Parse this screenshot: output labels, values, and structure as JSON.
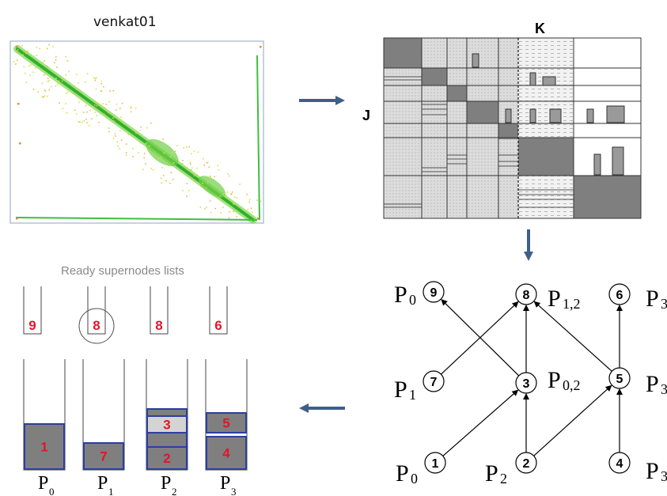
{
  "matrix_title": "venkat01",
  "block_matrix": {
    "col_label": "K",
    "row_label": "J"
  },
  "ready_lists": {
    "title": "Ready supernodes lists",
    "top": [
      "9",
      "8",
      "8",
      "6"
    ],
    "circled_index": 1
  },
  "queues": [
    {
      "processor": "P",
      "sub": "0",
      "items": [
        "1"
      ]
    },
    {
      "processor": "P",
      "sub": "1",
      "items": [
        "7"
      ]
    },
    {
      "processor": "P",
      "sub": "2",
      "items": [
        "3",
        "2"
      ]
    },
    {
      "processor": "P",
      "sub": "3",
      "items": [
        "5",
        "4"
      ]
    }
  ],
  "task_graph": {
    "nodes": [
      {
        "id": "9",
        "proc": "P",
        "sub": "0"
      },
      {
        "id": "8",
        "proc": "P",
        "sub": "1,2"
      },
      {
        "id": "6",
        "proc": "P",
        "sub": "3"
      },
      {
        "id": "7",
        "proc": "P",
        "sub": "1"
      },
      {
        "id": "3",
        "proc": "P",
        "sub": "0,2"
      },
      {
        "id": "5",
        "proc": "P",
        "sub": "3"
      },
      {
        "id": "1",
        "proc": "P",
        "sub": "0"
      },
      {
        "id": "2",
        "proc": "P",
        "sub": "2"
      },
      {
        "id": "4",
        "proc": "P",
        "sub": "3"
      }
    ],
    "edges": [
      [
        "1",
        "3"
      ],
      [
        "2",
        "3"
      ],
      [
        "2",
        "5"
      ],
      [
        "4",
        "5"
      ],
      [
        "3",
        "9"
      ],
      [
        "3",
        "8"
      ],
      [
        "7",
        "8"
      ],
      [
        "5",
        "8"
      ],
      [
        "5",
        "6"
      ]
    ]
  },
  "colors": {
    "arrow": "#3e5f8a",
    "queue_fill": "#7f7f7f",
    "queue_border": "#2b3ea0",
    "number": "#e0162b",
    "light_fill": "#d4d4d4"
  }
}
